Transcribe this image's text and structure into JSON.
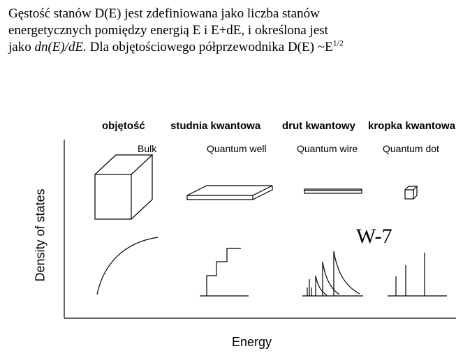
{
  "intro": {
    "line1": "Gęstość stanów D(E) jest zdefiniowana jako liczba stanów",
    "line2": "energetycznych pomiędzy energią E i E+dE, i określona jest",
    "line3_pre": "jako ",
    "line3_formula": "dn(E)/dE.",
    "line3_post": " Dla objętościowego półprzewodnika D(E) ~E",
    "exponent": "1/2"
  },
  "columns": [
    {
      "label_pl": "objętość",
      "label_en": "Bulk"
    },
    {
      "label_pl": "studnia kwantowa",
      "label_en": "Quantum well"
    },
    {
      "label_pl": "drut kwantowy",
      "label_en": "Quantum wire"
    },
    {
      "label_pl": "kropka kwantowa",
      "label_en": "Quantum dot"
    }
  ],
  "axes": {
    "xlabel": "Energy",
    "ylabel": "Density of states"
  },
  "stamp": "W-7"
}
